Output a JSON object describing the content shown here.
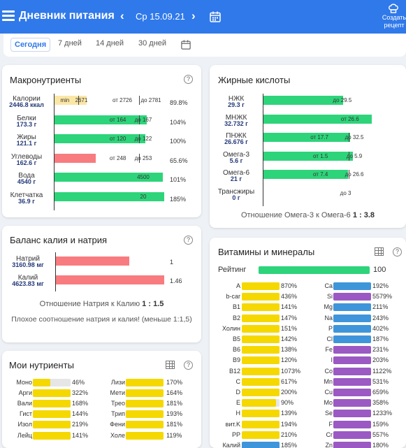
{
  "header": {
    "title": "Дневник питания",
    "prev": "‹",
    "next": "›",
    "date": "Ср 15.09.21",
    "create_label": "Создать рецепт"
  },
  "tabs": [
    {
      "label": "Сегодня"
    },
    {
      "label": "7 дней"
    },
    {
      "label": "14 дней"
    },
    {
      "label": "30 дней"
    }
  ],
  "colors": {
    "primary": "#3079ea",
    "green": "#2ed47a",
    "yellow": "#f5d800",
    "lightyellow": "#fbe7a5",
    "red": "#f87b80",
    "blue": "#3f95d9",
    "purple": "#9b59c4"
  },
  "macro": {
    "title": "Макронутриенты",
    "help": "?",
    "rows": [
      {
        "name": "Калории",
        "amount": "2446.8",
        "unit": "ккал",
        "pct": "89.8%",
        "fill": 0.3,
        "color": "lightyellow",
        "marks": [
          {
            "text": "min",
            "x": 0.1
          },
          {
            "text": "2671",
            "x": 0.25
          },
          {
            "text": "от 2726",
            "x": 0.62
          },
          {
            "text": "до 2781",
            "x": 0.88
          }
        ],
        "ticks": [
          0.22,
          0.77
        ]
      },
      {
        "name": "Белки",
        "amount": "173.3",
        "unit": "г",
        "pct": "104%",
        "fill": 0.84,
        "color": "green",
        "marks": [
          {
            "text": "от 164",
            "x": 0.58
          },
          {
            "text": "до 167",
            "x": 0.81
          }
        ],
        "ticks": [
          0.77
        ]
      },
      {
        "name": "Жиры",
        "amount": "121.1",
        "unit": "г",
        "pct": "100%",
        "fill": 0.83,
        "color": "green",
        "marks": [
          {
            "text": "от 120",
            "x": 0.58
          },
          {
            "text": "до 122",
            "x": 0.81
          }
        ],
        "ticks": [
          0.77
        ]
      },
      {
        "name": "Углеводы",
        "amount": "162.6",
        "unit": "г",
        "pct": "65.6%",
        "fill": 0.38,
        "color": "red",
        "marks": [
          {
            "text": "от 248",
            "x": 0.58
          },
          {
            "text": "до 253",
            "x": 0.81
          }
        ],
        "ticks": [
          0.77
        ]
      },
      {
        "name": "Вода",
        "amount": "4540",
        "unit": "г",
        "pct": "101%",
        "fill": 0.99,
        "color": "green",
        "marks": [
          {
            "text": "4500",
            "x": 0.81
          }
        ],
        "ticks": []
      },
      {
        "name": "Клетчатка",
        "amount": "36.9",
        "unit": "г",
        "pct": "185%",
        "fill": 1.0,
        "color": "green",
        "marks": [
          {
            "text": "20",
            "x": 0.81
          }
        ],
        "ticks": []
      }
    ]
  },
  "fatty": {
    "title": "Жирные кислоты",
    "rows": [
      {
        "name": "НЖК",
        "amount": "29.3",
        "unit": "г",
        "fill": 0.74,
        "color": "green",
        "marks": [
          {
            "text": "до 29.5",
            "x": 0.73
          }
        ],
        "ticks": []
      },
      {
        "name": "МНЖК",
        "amount": "32.732",
        "unit": "г",
        "fill": 1.0,
        "color": "green",
        "marks": [
          {
            "text": "от 26.6",
            "x": 0.8
          }
        ],
        "ticks": []
      },
      {
        "name": "ПНЖК",
        "amount": "26.676",
        "unit": "г",
        "fill": 0.8,
        "color": "green",
        "marks": [
          {
            "text": "от 17.7",
            "x": 0.52
          },
          {
            "text": "до 32.5",
            "x": 0.84
          }
        ],
        "ticks": [
          0.79
        ]
      },
      {
        "name": "Омега-3",
        "amount": "5.6",
        "unit": "г",
        "fill": 0.83,
        "color": "green",
        "marks": [
          {
            "text": "от 1.5",
            "x": 0.53
          },
          {
            "text": "до 5.9",
            "x": 0.84
          }
        ],
        "ticks": [
          0.79
        ]
      },
      {
        "name": "Омега-6",
        "amount": "21",
        "unit": "г",
        "fill": 0.78,
        "color": "green",
        "marks": [
          {
            "text": "от 7.4",
            "x": 0.53
          },
          {
            "text": "до 26.6",
            "x": 0.84
          }
        ],
        "ticks": [
          0.79
        ]
      },
      {
        "name": "Трансжиры",
        "amount": "0",
        "unit": "г",
        "fill": 0,
        "color": "green",
        "marks": [
          {
            "text": "до 3",
            "x": 0.76
          }
        ],
        "ticks": []
      }
    ],
    "ratio_label": "Отношение Омега-3 к Омега-6",
    "ratio": "1 : 3.8"
  },
  "potassium": {
    "title": "Баланс калия и натрия",
    "help": "?",
    "rows": [
      {
        "name": "Натрий",
        "amount": "3160.98",
        "unit": "мг",
        "value": "1",
        "fill": 0.67,
        "color": "red"
      },
      {
        "name": "Калий",
        "amount": "4623.83",
        "unit": "мг",
        "value": "1.46",
        "fill": 0.99,
        "color": "red"
      }
    ],
    "ratio_label": "Отношение Натрия к Калию",
    "ratio": "1 : 1.5",
    "warning": "Плохое соотношение натрия и калия! (меньше 1:1,5)"
  },
  "my": {
    "title": "Мои нутриенты",
    "help": "?",
    "left": [
      {
        "name": "Моно",
        "pct": "46%",
        "fill": 0.46
      },
      {
        "name": "Арги",
        "pct": "322%",
        "fill": 1
      },
      {
        "name": "Вали",
        "pct": "168%",
        "fill": 1
      },
      {
        "name": "Гист",
        "pct": "144%",
        "fill": 1
      },
      {
        "name": "Изол",
        "pct": "219%",
        "fill": 1
      },
      {
        "name": "Лейц",
        "pct": "141%",
        "fill": 1
      }
    ],
    "right": [
      {
        "name": "Лизи",
        "pct": "170%",
        "fill": 1
      },
      {
        "name": "Мети",
        "pct": "164%",
        "fill": 1
      },
      {
        "name": "Трео",
        "pct": "181%",
        "fill": 1
      },
      {
        "name": "Трип",
        "pct": "193%",
        "fill": 1
      },
      {
        "name": "Фени",
        "pct": "181%",
        "fill": 1
      },
      {
        "name": "Холе",
        "pct": "119%",
        "fill": 1
      }
    ]
  },
  "vitamins": {
    "title": "Витамины и минералы",
    "help": "?",
    "rating_label": "Рейтинг",
    "rating": "100",
    "rating_fill": 1.0,
    "left": [
      {
        "name": "A",
        "pct": "870%",
        "color": "yellow"
      },
      {
        "name": "b-car",
        "pct": "436%",
        "color": "yellow"
      },
      {
        "name": "B1",
        "pct": "141%",
        "color": "yellow"
      },
      {
        "name": "B2",
        "pct": "147%",
        "color": "yellow"
      },
      {
        "name": "Холин",
        "pct": "151%",
        "color": "yellow"
      },
      {
        "name": "B5",
        "pct": "142%",
        "color": "yellow"
      },
      {
        "name": "B6",
        "pct": "138%",
        "color": "yellow"
      },
      {
        "name": "B9",
        "pct": "120%",
        "color": "yellow"
      },
      {
        "name": "B12",
        "pct": "1073%",
        "color": "yellow"
      },
      {
        "name": "C",
        "pct": "617%",
        "color": "yellow"
      },
      {
        "name": "D",
        "pct": "200%",
        "color": "yellow"
      },
      {
        "name": "E",
        "pct": "90%",
        "color": "yellow",
        "fill": 0.9
      },
      {
        "name": "H",
        "pct": "139%",
        "color": "yellow"
      },
      {
        "name": "вит.K",
        "pct": "194%",
        "color": "yellow"
      },
      {
        "name": "PP",
        "pct": "210%",
        "color": "yellow"
      },
      {
        "name": "Калий",
        "pct": "185%",
        "color": "blue"
      }
    ],
    "right": [
      {
        "name": "Ca",
        "pct": "192%",
        "color": "blue"
      },
      {
        "name": "Si",
        "pct": "5579%",
        "color": "purple"
      },
      {
        "name": "Mg",
        "pct": "211%",
        "color": "blue"
      },
      {
        "name": "Na",
        "pct": "243%",
        "color": "blue"
      },
      {
        "name": "P",
        "pct": "402%",
        "color": "blue"
      },
      {
        "name": "Cl",
        "pct": "187%",
        "color": "blue"
      },
      {
        "name": "Fe",
        "pct": "231%",
        "color": "purple"
      },
      {
        "name": "I",
        "pct": "203%",
        "color": "purple"
      },
      {
        "name": "Co",
        "pct": "1122%",
        "color": "purple"
      },
      {
        "name": "Mn",
        "pct": "531%",
        "color": "purple"
      },
      {
        "name": "Cu",
        "pct": "659%",
        "color": "purple"
      },
      {
        "name": "Mo",
        "pct": "358%",
        "color": "purple"
      },
      {
        "name": "Se",
        "pct": "1233%",
        "color": "purple"
      },
      {
        "name": "F",
        "pct": "159%",
        "color": "purple"
      },
      {
        "name": "Cr",
        "pct": "557%",
        "color": "purple"
      },
      {
        "name": "Zn",
        "pct": "180%",
        "color": "purple"
      }
    ]
  }
}
